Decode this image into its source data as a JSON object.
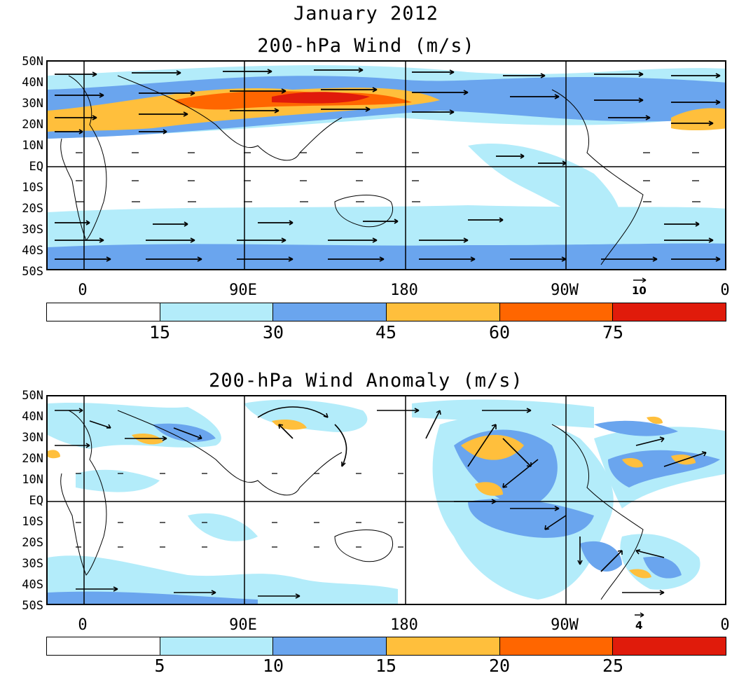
{
  "header": {
    "month_title": "January 2012"
  },
  "panels": [
    {
      "title": "200-hPa Wind (m/s)",
      "lat_labels": [
        "50N",
        "40N",
        "30N",
        "20N",
        "10N",
        "EQ",
        "10S",
        "20S",
        "30S",
        "40S",
        "50S"
      ],
      "lon_labels": [
        "0",
        "90E",
        "180",
        "90W",
        "0"
      ],
      "ref_vector_label": "10",
      "colorbar": {
        "colors": [
          "#ffffff",
          "#b3ecfa",
          "#6aa5ee",
          "#ffbf3c",
          "#ff6600",
          "#e01b0b"
        ],
        "labels": [
          "15",
          "30",
          "45",
          "60",
          "75"
        ]
      }
    },
    {
      "title": "200-hPa Wind Anomaly (m/s)",
      "lat_labels": [
        "50N",
        "40N",
        "30N",
        "20N",
        "10N",
        "EQ",
        "10S",
        "20S",
        "30S",
        "40S",
        "50S"
      ],
      "lon_labels": [
        "0",
        "90E",
        "180",
        "90W",
        "0"
      ],
      "ref_vector_label": "4",
      "colorbar": {
        "colors": [
          "#ffffff",
          "#b3ecfa",
          "#6aa5ee",
          "#ffbf3c",
          "#ff6600",
          "#e01b0b"
        ],
        "labels": [
          "5",
          "10",
          "15",
          "20",
          "25"
        ]
      }
    }
  ]
}
